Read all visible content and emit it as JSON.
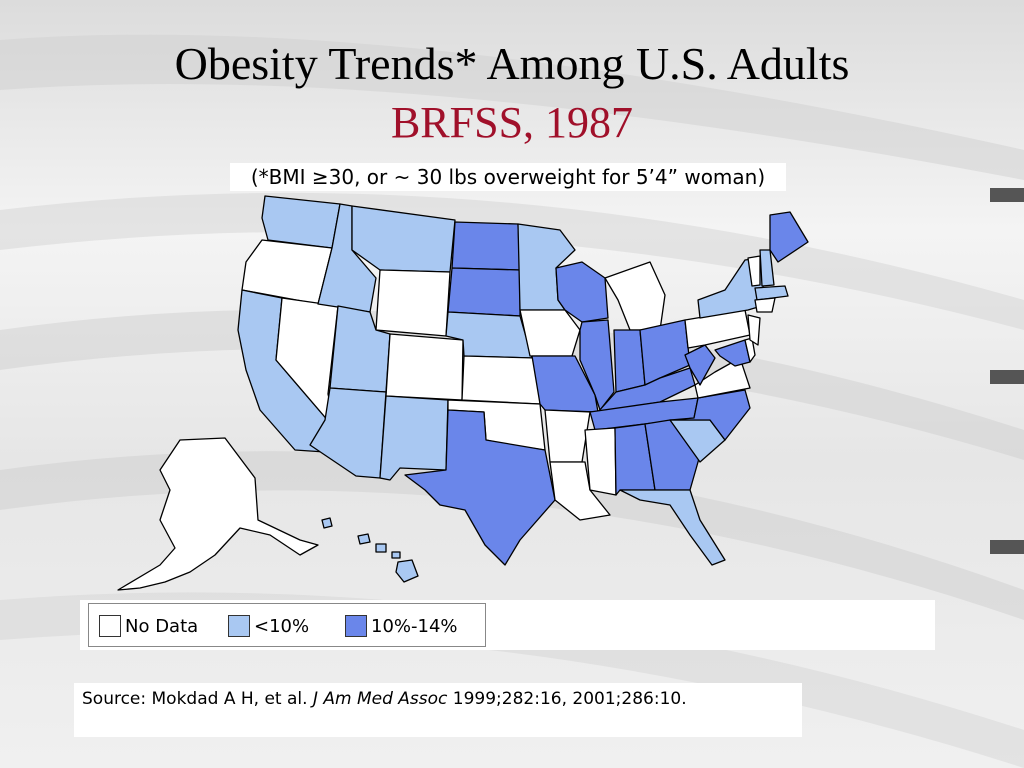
{
  "slide": {
    "title": "Obesity Trends* Among U.S. Adults",
    "subtitle": "BRFSS, 1987",
    "footnote": "(*BMI ≥30, or ~ 30 lbs overweight for 5’4” woman)"
  },
  "legend": {
    "items": [
      {
        "label": "No Data",
        "color": "#ffffff"
      },
      {
        "label": "<10%",
        "color": "#a9c8f2"
      },
      {
        "label": "10%-14%",
        "color": "#6a86ea"
      }
    ]
  },
  "source": {
    "prefix": "Source: Mokdad A H, et al.",
    "journal": "J Am Med Assoc",
    "suffix": "1999;282:16, 2001;286:10."
  },
  "map_data": {
    "no_data": [
      "Oregon",
      "Nevada",
      "Wyoming",
      "Colorado",
      "Kansas",
      "Oklahoma",
      "Iowa",
      "Arkansas",
      "Louisiana",
      "Mississippi",
      "Michigan",
      "Pennsylvania",
      "Vermont",
      "Virginia",
      "New Jersey",
      "Alaska",
      "Delaware"
    ],
    "lt10": [
      "Washington",
      "Idaho",
      "Montana",
      "California",
      "Utah",
      "Arizona",
      "New Mexico",
      "Nebraska",
      "Minnesota",
      "Florida",
      "South Carolina",
      "New York",
      "New Hampshire",
      "Massachusetts",
      "Hawaii"
    ],
    "10to14": [
      "North Dakota",
      "South Dakota",
      "Texas",
      "Missouri",
      "Wisconsin",
      "Illinois",
      "Indiana",
      "Ohio",
      "Kentucky",
      "Tennessee",
      "Alabama",
      "Georgia",
      "North Carolina",
      "West Virginia",
      "Maryland",
      "Maine"
    ]
  }
}
